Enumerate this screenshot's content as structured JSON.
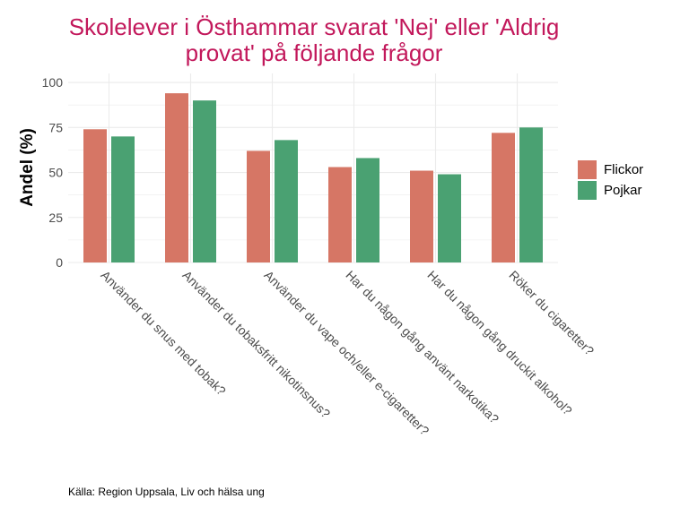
{
  "chart_data": {
    "type": "bar",
    "title_lines": [
      "Skolelever i Östhammar svarat 'Nej' eller 'Aldrig",
      "provat' på följande frågor"
    ],
    "xlabel": "",
    "ylabel": "Andel (%)",
    "ylim": [
      0,
      105
    ],
    "yticks": [
      0,
      25,
      50,
      75,
      100
    ],
    "grid": true,
    "legend_position": "right",
    "categories": [
      "Använder du snus med tobak?",
      "Använder du tobaksfritt nikotinsnus?",
      "Använder du vape och/eller e-cigaretter?",
      "Har du någon gång använt narkotika?",
      "Har du någon gång druckit alkohol?",
      "Röker du cigaretter?"
    ],
    "series": [
      {
        "name": "Flickor",
        "color": "#d67665",
        "values": [
          74,
          94,
          62,
          53,
          51,
          72
        ]
      },
      {
        "name": "Pojkar",
        "color": "#4aa172",
        "values": [
          70,
          90,
          68,
          58,
          49,
          75
        ]
      }
    ],
    "caption": "Källa: Region Uppsala, Liv och hälsa ung"
  },
  "colors": {
    "title": "#c2185b",
    "grid": "#ebebeb",
    "tick_text": "#4d4d4d"
  }
}
